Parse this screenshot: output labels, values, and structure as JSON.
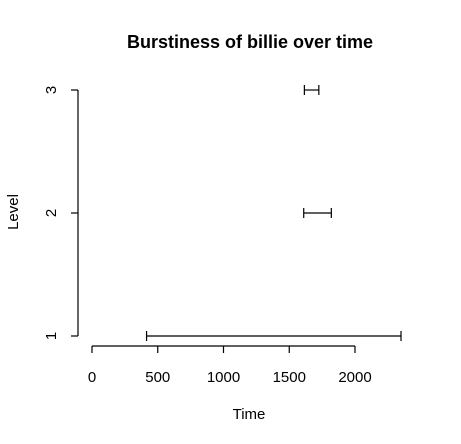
{
  "chart_data": {
    "type": "interval",
    "title": "Burstiness of  billie over time",
    "xlabel": "Time",
    "ylabel": "Level",
    "x_ticks": [
      0,
      500,
      1000,
      1500,
      2000
    ],
    "x_tick_labels": [
      "0",
      "500",
      "1000",
      "1500",
      "2000"
    ],
    "xlim": [
      0,
      2000
    ],
    "y_ticks": [
      1,
      2,
      3
    ],
    "y_tick_labels": [
      "1",
      "2",
      "3"
    ],
    "ylim": [
      1,
      3
    ],
    "grid": false,
    "legend": "none",
    "intervals": [
      {
        "level": 1,
        "start": 415,
        "end": 2350
      },
      {
        "level": 2,
        "start": 1610,
        "end": 1820
      },
      {
        "level": 3,
        "start": 1615,
        "end": 1725
      }
    ]
  }
}
